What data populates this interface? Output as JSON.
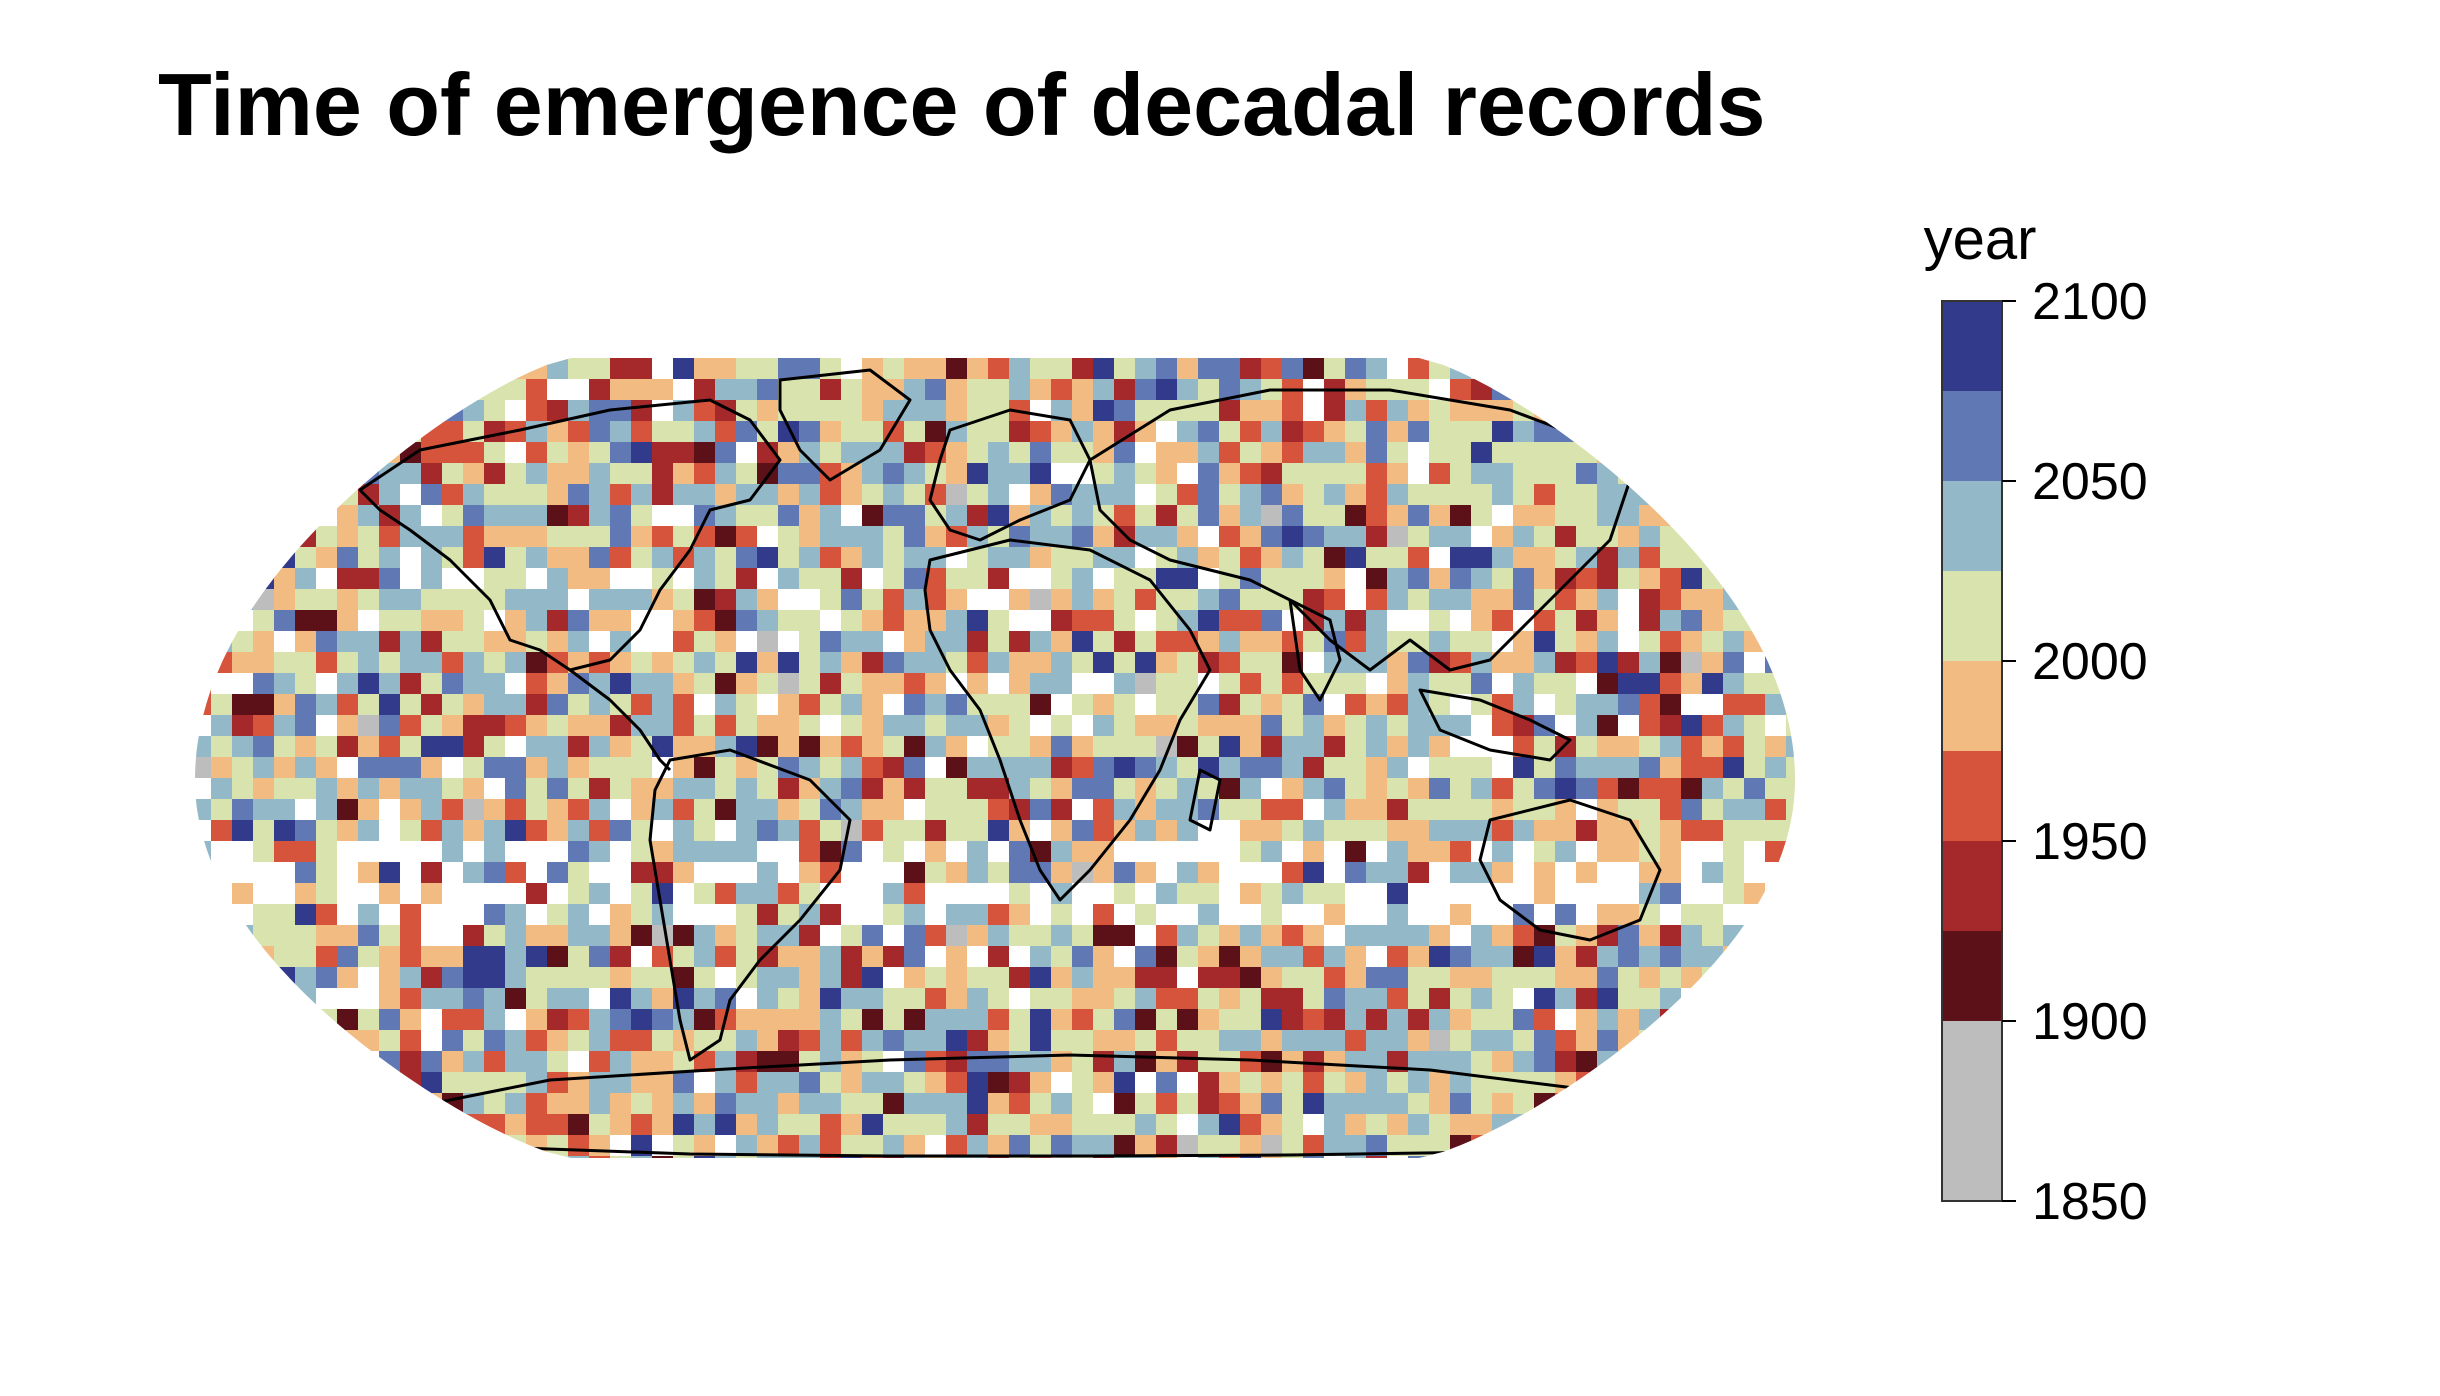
{
  "title": "Time of emergence of decadal records",
  "legend": {
    "title": "year",
    "bins": [
      {
        "from": 1850,
        "to": 1900,
        "color": "#bdbdbd"
      },
      {
        "from": 1900,
        "to": 1925,
        "color": "#5c1018"
      },
      {
        "from": 1925,
        "to": 1950,
        "color": "#a5292b"
      },
      {
        "from": 1950,
        "to": 1975,
        "color": "#d6533c"
      },
      {
        "from": 1975,
        "to": 2000,
        "color": "#f2bb82"
      },
      {
        "from": 2000,
        "to": 2025,
        "color": "#d9e3ae"
      },
      {
        "from": 2025,
        "to": 2050,
        "color": "#93b9c9"
      },
      {
        "from": 2050,
        "to": 2075,
        "color": "#6078b4"
      },
      {
        "from": 2075,
        "to": 2100,
        "color": "#323a8c"
      }
    ],
    "ticks": [
      1850,
      1900,
      1950,
      2000,
      2050,
      2100
    ],
    "tick_labels": [
      "1850",
      "1900",
      "1950",
      "2000",
      "2050",
      "2100"
    ]
  },
  "map": {
    "projection": "Robinson",
    "missing_color": "#ffffff",
    "coastline_color": "#000000",
    "grid_resolution_deg": 5,
    "description_of_field": "gridded year of emergence"
  }
}
